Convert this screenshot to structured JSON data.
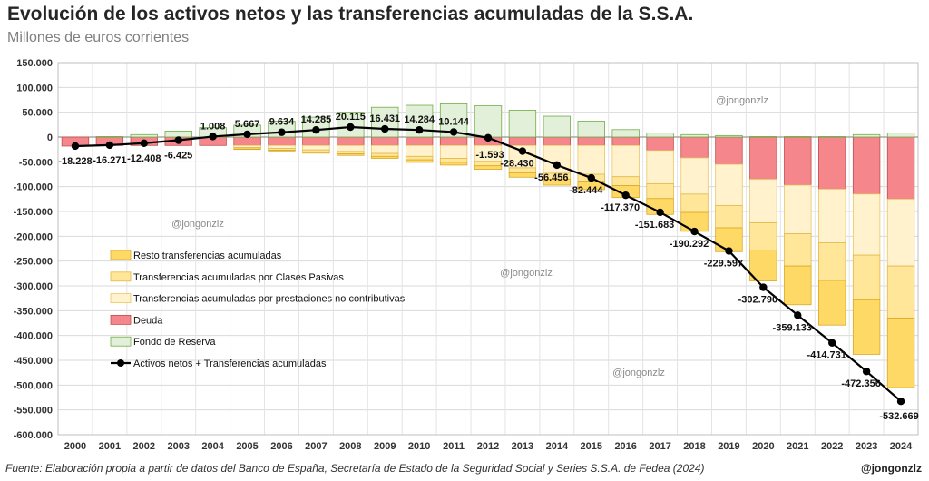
{
  "title": "Evolución de los activos netos y las transferencias acumuladas de la S.S.A.",
  "subtitle": "Millones de euros corrientes",
  "source": "Fuente: Elaboración propia a partir de datos del Banco de España, Secretaría de Estado de la Seguridad Social y Series S.S.A. de Fedea (2024)",
  "handle": "@jongonzlz",
  "watermark": "@jongonzlz",
  "colors": {
    "resto": "#ffd966",
    "clases": "#ffe699",
    "nocontrib": "#fff2cc",
    "deuda": "#f4868c",
    "fondo": "#e2efd9",
    "line": "#000000"
  },
  "chart_data": {
    "type": "bar",
    "ylim": [
      -600000,
      150000
    ],
    "yticks": [
      "150.000",
      "100.000",
      "50.000",
      "0",
      "-50.000",
      "-100.000",
      "-150.000",
      "-200.000",
      "-250.000",
      "-300.000",
      "-350.000",
      "-400.000",
      "-450.000",
      "-500.000",
      "-550.000",
      "-600.000"
    ],
    "grid": true,
    "legend_position": "left-bottom",
    "categories": [
      "2000",
      "2001",
      "2002",
      "2003",
      "2004",
      "2005",
      "2006",
      "2007",
      "2008",
      "2009",
      "2010",
      "2011",
      "2012",
      "2013",
      "2014",
      "2015",
      "2016",
      "2017",
      "2018",
      "2019",
      "2020",
      "2021",
      "2022",
      "2023",
      "2024"
    ],
    "series": [
      {
        "name": "Resto transferencias acumuladas",
        "key": "resto",
        "values": [
          0,
          0,
          0,
          0,
          0,
          -1000,
          -1500,
          -2500,
          -3000,
          -4000,
          -5000,
          -5500,
          -7000,
          -9000,
          -12000,
          -17000,
          -24000,
          -32000,
          -38000,
          -48000,
          -62000,
          -78000,
          -90000,
          -110000,
          -140000
        ]
      },
      {
        "name": "Transferencias acumuladas por Clases Pasivas",
        "key": "clases",
        "values": [
          0,
          0,
          0,
          0,
          0,
          -3000,
          -3500,
          -4000,
          -5000,
          -6000,
          -7000,
          -8000,
          -9000,
          -10000,
          -12000,
          -14000,
          -18000,
          -30000,
          -37000,
          -45000,
          -55000,
          -65000,
          -76000,
          -90000,
          -105000
        ]
      },
      {
        "name": "Transferencias acumuladas por prestaciones no contributivas",
        "key": "nocontrib",
        "values": [
          0,
          0,
          0,
          0,
          0,
          -4000,
          -6000,
          -9000,
          -12000,
          -16000,
          -22000,
          -26000,
          -32000,
          -45000,
          -56000,
          -58000,
          -63000,
          -67000,
          -73000,
          -83000,
          -88000,
          -98000,
          -108000,
          -123000,
          -135000
        ]
      },
      {
        "name": "Deuda",
        "key": "deuda",
        "values": [
          -18228,
          -17000,
          -17000,
          -17000,
          -17000,
          -17000,
          -17000,
          -17000,
          -17000,
          -17000,
          -17000,
          -17000,
          -17000,
          -17000,
          -17000,
          -17000,
          -17000,
          -27000,
          -42000,
          -55000,
          -85000,
          -97000,
          -105000,
          -115000,
          -125000
        ]
      },
      {
        "name": "Fondo de Reserva",
        "key": "fondo",
        "values": [
          0,
          1000,
          5000,
          12000,
          19000,
          24000,
          32000,
          40000,
          50000,
          60000,
          64000,
          67000,
          63000,
          54000,
          42000,
          32000,
          15000,
          8000,
          5000,
          3000,
          1000,
          1000,
          1000,
          5000,
          8000
        ]
      },
      {
        "name": "Activos netos + Transferencias acumuladas",
        "key": "line",
        "type": "line",
        "values": [
          -18228,
          -16271,
          -12408,
          -6425,
          1008,
          5667,
          9634,
          14285,
          20115,
          16431,
          14284,
          10144,
          -1593,
          -28430,
          -56456,
          -82444,
          -117370,
          -151683,
          -190292,
          -229597,
          -302790,
          -359133,
          -414731,
          -472356,
          -532669
        ],
        "labels": [
          "-18.228",
          "-16.271",
          "-12.408",
          "-6.425",
          "1.008",
          "5.667",
          "9.634",
          "14.285",
          "20.115",
          "16.431",
          "14.284",
          "10.144",
          "-1.593",
          "-28.430",
          "-56.456",
          "-82.444",
          "-117.370",
          "-151.683",
          "-190.292",
          "-229.597",
          "-302.790",
          "-359.133",
          "-414.731",
          "-472.356",
          "-532.669"
        ]
      }
    ]
  }
}
